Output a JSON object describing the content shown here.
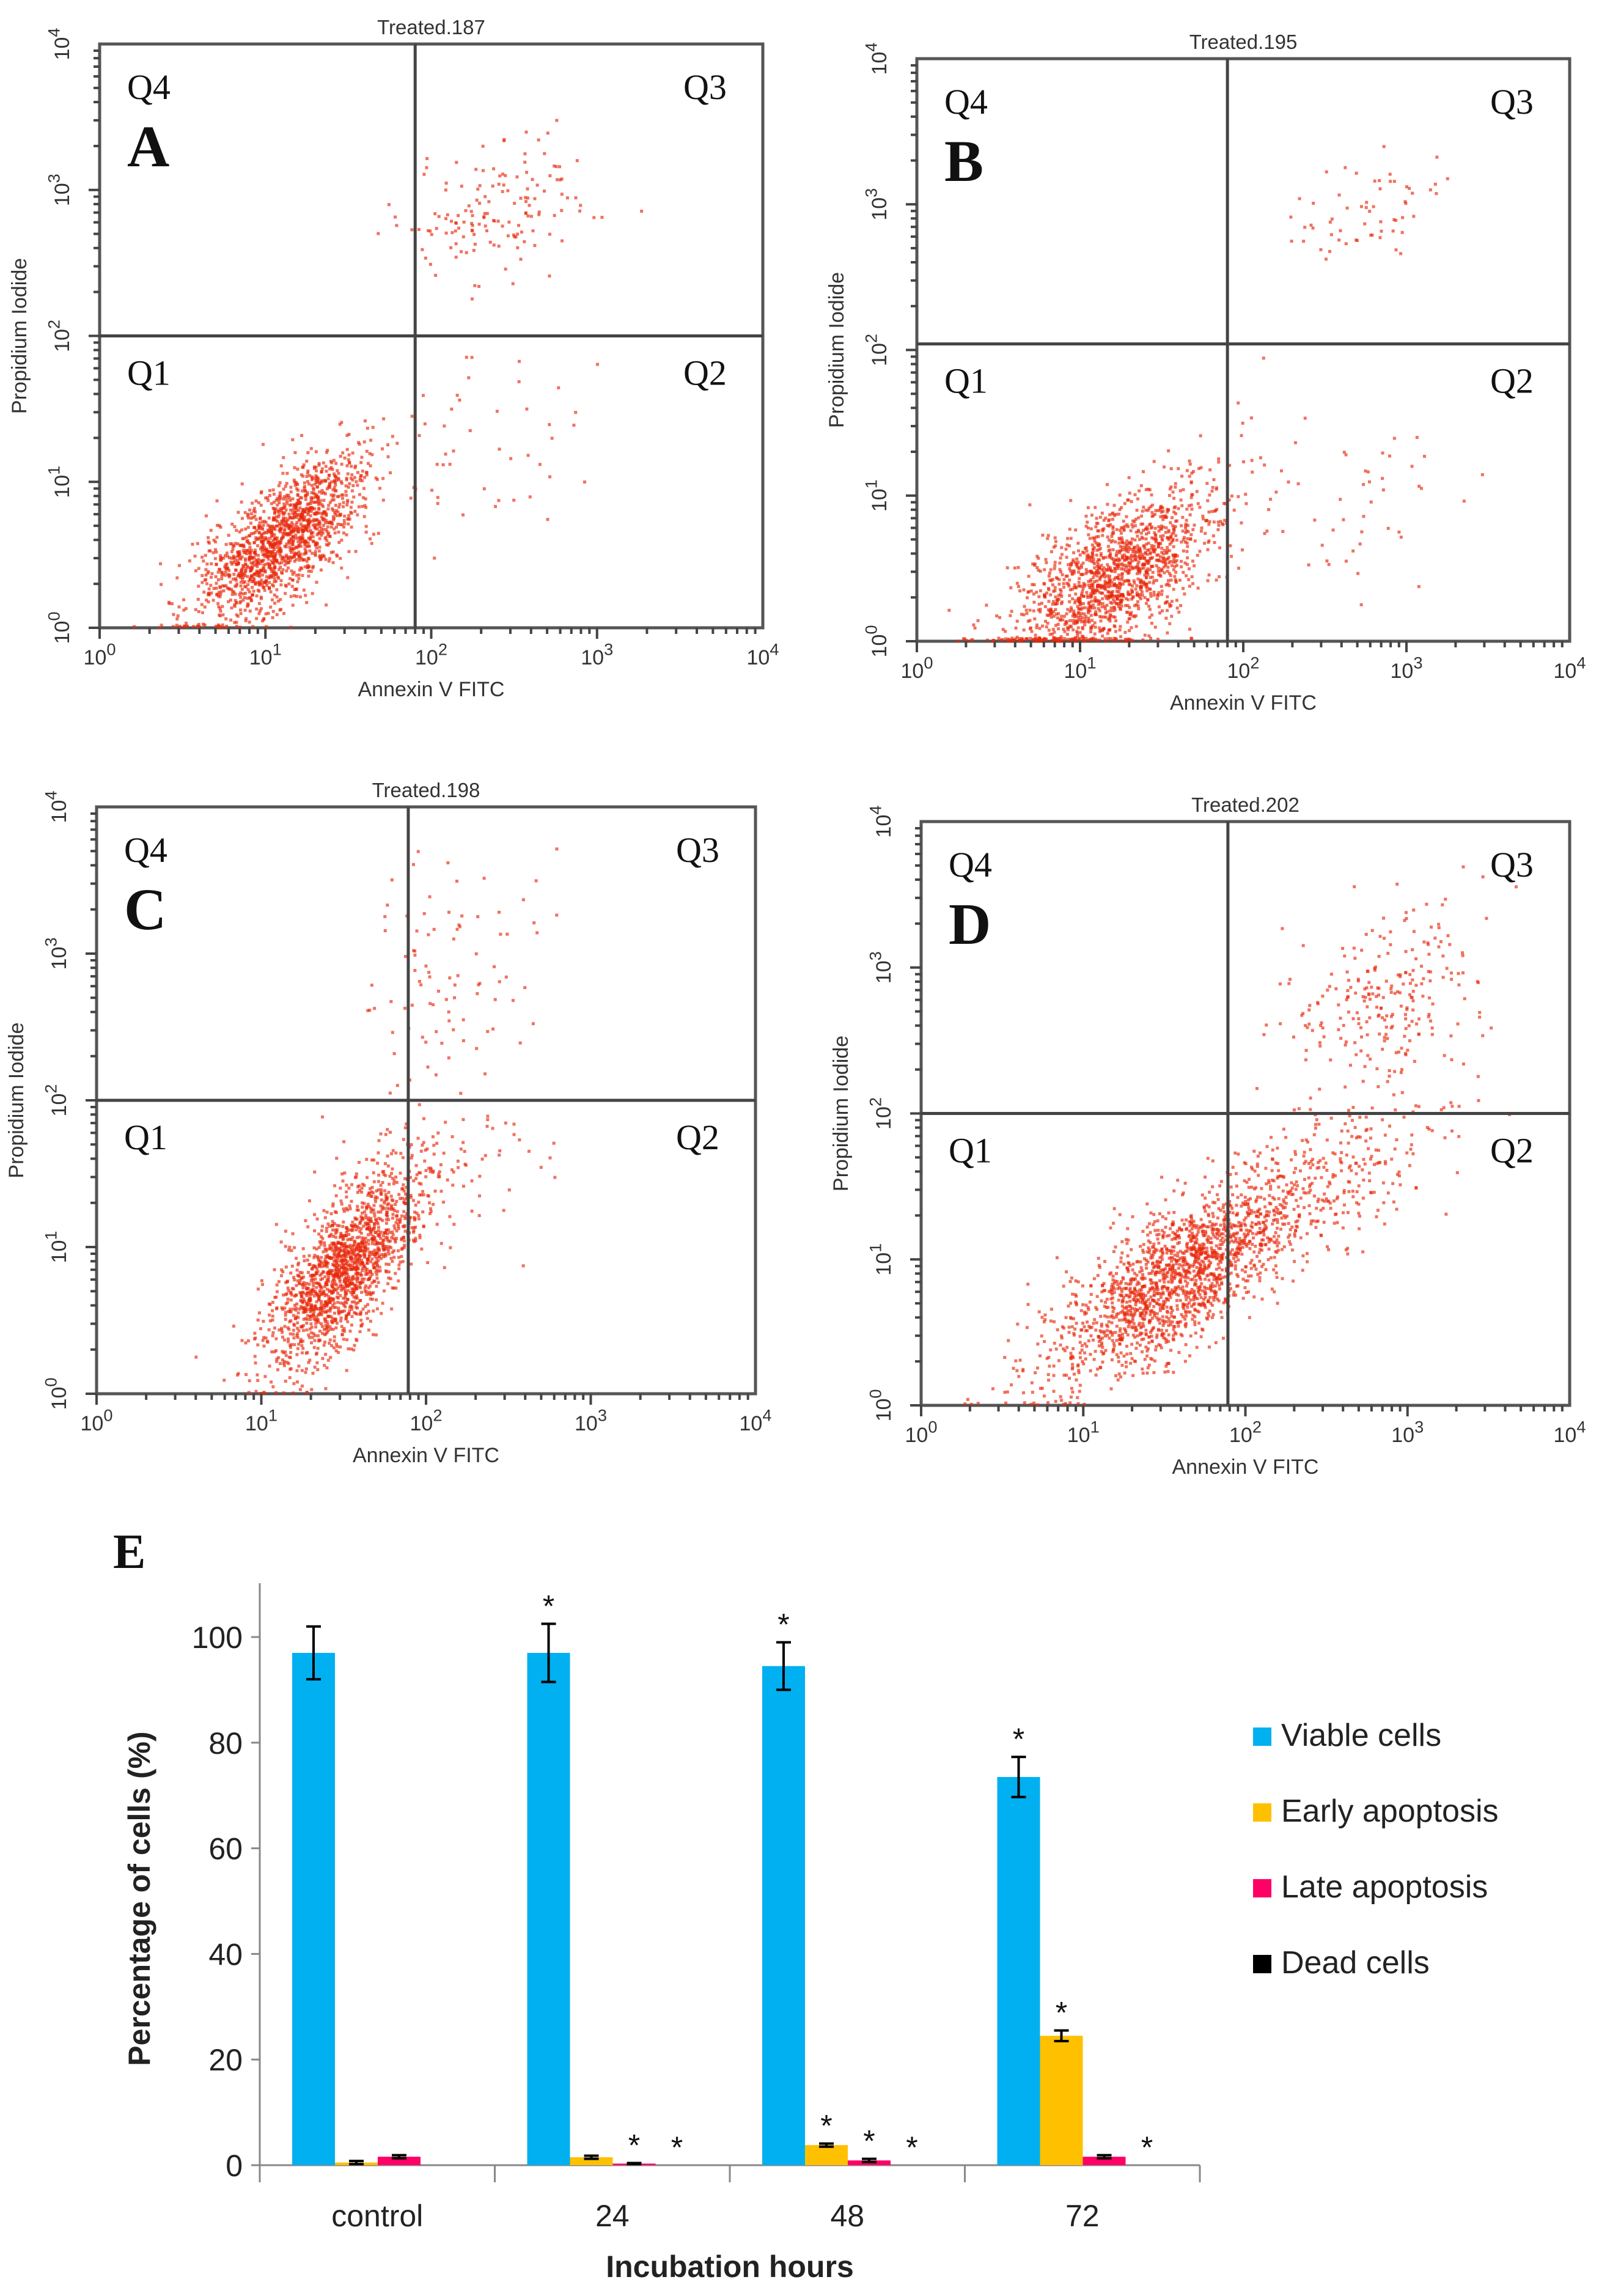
{
  "chart_data": [
    {
      "type": "scatter",
      "panel_letter": "A",
      "title": "Treated.187",
      "xlabel": "Annexin V FITC",
      "ylabel": "Propidium Iodide",
      "xscale": "log",
      "yscale": "log",
      "xlim": [
        1,
        10000
      ],
      "ylim": [
        1,
        10000
      ],
      "xticks": [
        "10^0",
        "10^1",
        "10^2",
        "10^3",
        "10^4"
      ],
      "yticks": [
        "10^0",
        "10^1",
        "10^2",
        "10^3",
        "10^4"
      ],
      "gate": {
        "x": 80,
        "y": 100
      },
      "quadrants": [
        "Q1",
        "Q2",
        "Q3",
        "Q4"
      ],
      "populations": [
        {
          "name": "main",
          "center_log": [
            1.1,
            0.6
          ],
          "sd_log": [
            0.25,
            0.28
          ],
          "corr": 0.7,
          "n": 1500
        },
        {
          "name": "late",
          "center_log": [
            2.4,
            2.85
          ],
          "sd_log": [
            0.3,
            0.25
          ],
          "corr": 0.3,
          "n": 150
        },
        {
          "name": "early",
          "center_log": [
            2.3,
            1.3
          ],
          "sd_log": [
            0.35,
            0.35
          ],
          "corr": 0.0,
          "n": 50
        }
      ]
    },
    {
      "type": "scatter",
      "panel_letter": "B",
      "title": "Treated.195",
      "xlabel": "Annexin V FITC",
      "ylabel": "Propidium Iodide",
      "xscale": "log",
      "yscale": "log",
      "xlim": [
        1,
        10000
      ],
      "ylim": [
        1,
        10000
      ],
      "xticks": [
        "10^0",
        "10^1",
        "10^2",
        "10^3",
        "10^4"
      ],
      "yticks": [
        "10^0",
        "10^1",
        "10^2",
        "10^3",
        "10^4"
      ],
      "gate": {
        "x": 80,
        "y": 110
      },
      "quadrants": [
        "Q1",
        "Q2",
        "Q3",
        "Q4"
      ],
      "populations": [
        {
          "name": "main",
          "center_log": [
            1.2,
            0.45
          ],
          "sd_log": [
            0.3,
            0.3
          ],
          "corr": 0.6,
          "n": 1500
        },
        {
          "name": "late",
          "center_log": [
            2.8,
            2.95
          ],
          "sd_log": [
            0.22,
            0.18
          ],
          "corr": 0.3,
          "n": 60
        },
        {
          "name": "early",
          "center_log": [
            2.4,
            0.9
          ],
          "sd_log": [
            0.4,
            0.4
          ],
          "corr": 0.0,
          "n": 60
        }
      ]
    },
    {
      "type": "scatter",
      "panel_letter": "C",
      "title": "Treated.198",
      "xlabel": "Annexin V FITC",
      "ylabel": "Propidium Iodide",
      "xscale": "log",
      "yscale": "log",
      "xlim": [
        1,
        10000
      ],
      "ylim": [
        1,
        10000
      ],
      "xticks": [
        "10^0",
        "10^1",
        "10^2",
        "10^3",
        "10^4"
      ],
      "yticks": [
        "10^0",
        "10^1",
        "10^2",
        "10^3",
        "10^4"
      ],
      "gate": {
        "x": 78,
        "y": 100
      },
      "quadrants": [
        "Q1",
        "Q2",
        "Q3",
        "Q4"
      ],
      "populations": [
        {
          "name": "main",
          "center_log": [
            1.5,
            0.85
          ],
          "sd_log": [
            0.22,
            0.32
          ],
          "corr": 0.7,
          "n": 1600
        },
        {
          "name": "late",
          "center_log": [
            2.2,
            2.9
          ],
          "sd_log": [
            0.28,
            0.4
          ],
          "corr": 0.2,
          "n": 90
        },
        {
          "name": "early",
          "center_log": [
            2.1,
            1.5
          ],
          "sd_log": [
            0.3,
            0.3
          ],
          "corr": 0.3,
          "n": 90
        }
      ]
    },
    {
      "type": "scatter",
      "panel_letter": "D",
      "title": "Treated.202",
      "xlabel": "Annexin V FITC",
      "ylabel": "Propidium Iodide",
      "xscale": "log",
      "yscale": "log",
      "xlim": [
        1,
        10000
      ],
      "ylim": [
        1,
        10000
      ],
      "xticks": [
        "10^0",
        "10^1",
        "10^2",
        "10^3",
        "10^4"
      ],
      "yticks": [
        "10^0",
        "10^1",
        "10^2",
        "10^3",
        "10^4"
      ],
      "gate": {
        "x": 78,
        "y": 100
      },
      "quadrants": [
        "Q1",
        "Q2",
        "Q3",
        "Q4"
      ],
      "populations": [
        {
          "name": "main",
          "center_log": [
            1.6,
            0.9
          ],
          "sd_log": [
            0.4,
            0.35
          ],
          "corr": 0.75,
          "n": 1800
        },
        {
          "name": "late",
          "center_log": [
            2.85,
            2.75
          ],
          "sd_log": [
            0.28,
            0.35
          ],
          "corr": 0.3,
          "n": 250
        },
        {
          "name": "early",
          "center_log": [
            2.6,
            1.6
          ],
          "sd_log": [
            0.35,
            0.3
          ],
          "corr": 0.5,
          "n": 200
        }
      ]
    },
    {
      "type": "bar",
      "panel_letter": "E",
      "title": "",
      "xlabel": "Incubation hours",
      "ylabel": "Percentage of cells (%)",
      "ylim": [
        0,
        110
      ],
      "yticks": [
        0,
        20,
        40,
        60,
        80,
        100
      ],
      "categories": [
        "control",
        "24",
        "48",
        "72"
      ],
      "legend_position": "right",
      "series": [
        {
          "name": "Viable cells",
          "color": "#00b0f0",
          "values": [
            97,
            97,
            94.5,
            73.5
          ],
          "errors": [
            5,
            5.5,
            4.5,
            3.8
          ],
          "significant": [
            false,
            true,
            true,
            true
          ]
        },
        {
          "name": "Early apoptosis",
          "color": "#ffc000",
          "values": [
            0.5,
            1.5,
            3.8,
            24.5
          ],
          "errors": [
            0.3,
            0.3,
            0.3,
            1.0
          ],
          "significant": [
            false,
            false,
            true,
            true
          ]
        },
        {
          "name": "Late apoptosis",
          "color": "#ff0066",
          "values": [
            1.6,
            0.3,
            0.9,
            1.6
          ],
          "errors": [
            0.3,
            0.1,
            0.3,
            0.3
          ],
          "significant": [
            false,
            true,
            true,
            false
          ]
        },
        {
          "name": "Dead cells",
          "color": "#000000",
          "values": [
            0,
            0,
            0,
            0
          ],
          "errors": [
            0,
            0,
            0,
            0
          ],
          "significant": [
            false,
            true,
            true,
            true
          ]
        }
      ],
      "significance_marker": "*"
    }
  ],
  "colors": {
    "scatter_point": "#e8280a",
    "axis": "#404040"
  }
}
